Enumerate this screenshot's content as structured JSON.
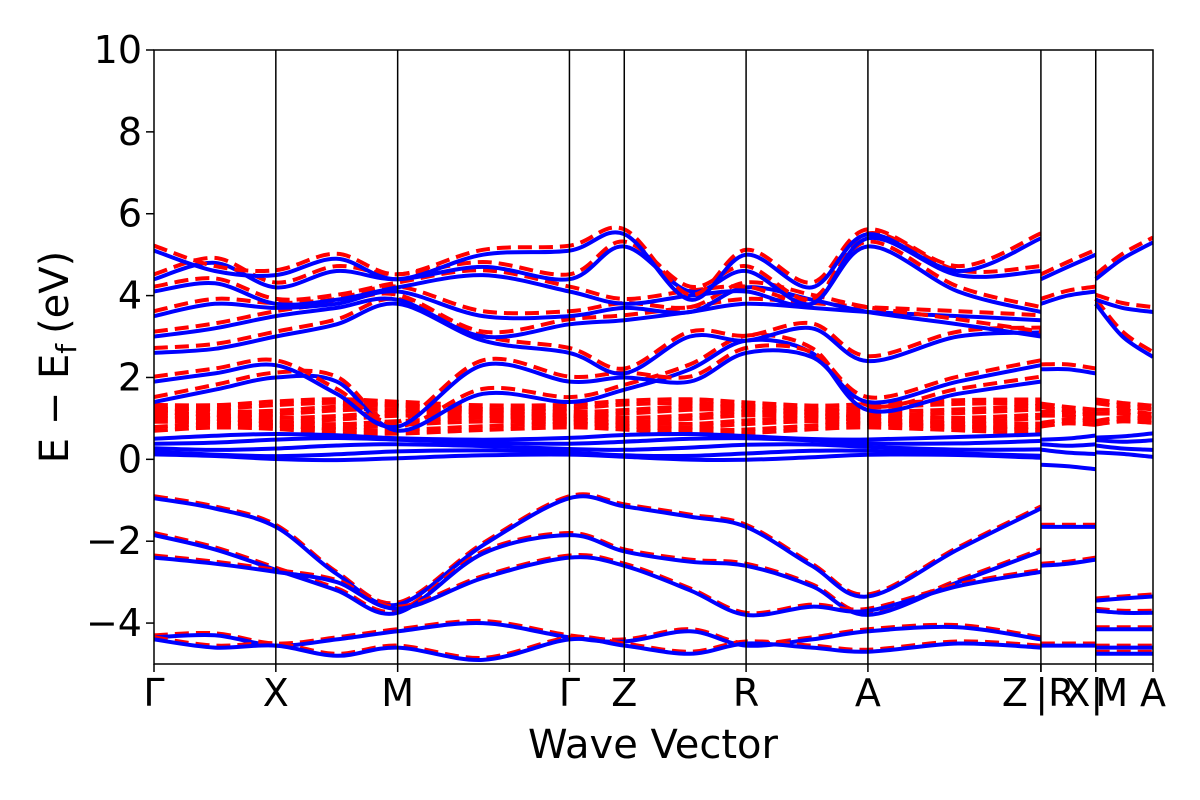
{
  "chart_data": {
    "type": "line",
    "xlabel": "Wave Vector",
    "ylabel": "E − E",
    "ylabel_subscript": "f",
    "ylabel_unit": "(eV)",
    "ylim": [
      -5,
      10
    ],
    "yticks": [
      {
        "value": -4,
        "label": "−4"
      },
      {
        "value": -2,
        "label": "−2"
      },
      {
        "value": 0,
        "label": "0"
      },
      {
        "value": 2,
        "label": "2"
      },
      {
        "value": 4,
        "label": "4"
      },
      {
        "value": 6,
        "label": "6"
      },
      {
        "value": 8,
        "label": "8"
      },
      {
        "value": 10,
        "label": "10"
      }
    ],
    "xlim": [
      0,
      8.2
    ],
    "kpoints": [
      {
        "label": "Γ",
        "x": 0.0
      },
      {
        "label": "X",
        "x": 1.0
      },
      {
        "label": "M",
        "x": 2.0
      },
      {
        "label": "Γ",
        "x": 3.41
      },
      {
        "label": "Z",
        "x": 3.86
      },
      {
        "label": "R",
        "x": 4.86
      },
      {
        "label": "A",
        "x": 5.86
      },
      {
        "label": "Z",
        "x": 7.28
      },
      {
        "label": "|R",
        "x": 7.28
      },
      {
        "label": "X|",
        "x": 7.73
      },
      {
        "label": "M",
        "x": 7.73
      },
      {
        "label": "A",
        "x": 8.2
      }
    ],
    "segment_breaks": [
      7.28,
      7.73
    ],
    "series_styles": [
      {
        "key": "dashed",
        "color": "#ff0000",
        "style": "dashed"
      },
      {
        "key": "solid",
        "color": "#0000ff",
        "style": "solid"
      }
    ],
    "bands": {
      "segments": [
        {
          "xs": [
            0,
            0.5,
            1.0,
            1.5,
            2.0,
            2.7,
            3.41,
            3.86,
            4.4,
            4.86,
            5.4,
            5.86,
            6.6,
            7.28
          ],
          "valence": [
            [
              -0.95,
              -1.2,
              -1.65,
              -2.8,
              -3.55,
              -2.1,
              -0.95,
              -1.15,
              -1.4,
              -1.65,
              -2.6,
              -3.35,
              -2.2,
              -1.2
            ],
            [
              -1.85,
              -2.2,
              -2.7,
              -3.2,
              -3.75,
              -2.3,
              -1.85,
              -2.25,
              -2.5,
              -2.6,
              -3.1,
              -3.8,
              -3.0,
              -2.25
            ],
            [
              -2.4,
              -2.55,
              -2.75,
              -3.0,
              -3.65,
              -2.9,
              -2.4,
              -2.6,
              -3.2,
              -3.8,
              -3.6,
              -3.7,
              -3.1,
              -2.75
            ],
            [
              -4.35,
              -4.3,
              -4.55,
              -4.4,
              -4.2,
              -4.0,
              -4.35,
              -4.45,
              -4.2,
              -4.55,
              -4.4,
              -4.2,
              -4.1,
              -4.4
            ],
            [
              -4.4,
              -4.6,
              -4.55,
              -4.8,
              -4.6,
              -4.9,
              -4.4,
              -4.55,
              -4.75,
              -4.5,
              -4.6,
              -4.7,
              -4.5,
              -4.6
            ]
          ],
          "flat": [
            0.05,
            0.15,
            0.3,
            0.45,
            0.55
          ],
          "flat_dashed": [
            0.7,
            0.85,
            1.0,
            1.15,
            1.3
          ],
          "conduction": [
            [
              1.4,
              1.7,
              2.0,
              1.9,
              0.7,
              1.6,
              1.4,
              1.7,
              2.2,
              2.9,
              2.6,
              1.2,
              1.6,
              1.9
            ],
            [
              1.9,
              2.1,
              2.3,
              1.6,
              0.8,
              2.3,
              1.9,
              2.0,
              1.9,
              2.6,
              2.5,
              1.4,
              1.9,
              2.3
            ],
            [
              2.6,
              2.7,
              3.0,
              3.3,
              3.8,
              2.9,
              2.6,
              2.1,
              3.0,
              2.9,
              3.2,
              2.4,
              3.0,
              3.1
            ],
            [
              3.0,
              3.2,
              3.5,
              3.7,
              3.9,
              3.0,
              3.3,
              3.4,
              3.6,
              3.8,
              3.7,
              3.6,
              3.5,
              3.4
            ],
            [
              3.5,
              3.8,
              3.7,
              3.8,
              4.1,
              3.5,
              3.5,
              3.7,
              3.6,
              4.2,
              3.9,
              3.6,
              3.3,
              3.0
            ],
            [
              4.1,
              4.3,
              3.8,
              3.9,
              4.2,
              4.5,
              4.1,
              3.8,
              4.0,
              4.1,
              3.8,
              5.2,
              4.1,
              3.6
            ],
            [
              4.4,
              4.8,
              4.2,
              4.6,
              4.4,
              4.7,
              4.4,
              5.2,
              4.1,
              4.6,
              3.8,
              5.4,
              4.5,
              4.6
            ],
            [
              5.1,
              4.6,
              4.5,
              4.9,
              4.4,
              5.0,
              5.1,
              5.5,
              3.9,
              5.0,
              4.2,
              5.5,
              4.6,
              5.4
            ]
          ]
        },
        {
          "xs": [
            7.28,
            7.5,
            7.73
          ],
          "valence": [
            [
              -1.65,
              -1.65,
              -1.65
            ],
            [
              -2.6,
              -2.55,
              -2.45
            ],
            [
              -4.55,
              -4.55,
              -4.55
            ]
          ],
          "flat": [
            -0.2,
            0.2,
            0.4,
            0.55
          ],
          "flat_dashed": [
            0.8,
            1.0,
            1.2
          ],
          "conduction": [
            [
              2.2,
              2.2,
              2.1
            ],
            [
              3.8,
              4.0,
              4.1
            ],
            [
              4.4,
              4.7,
              5.0
            ]
          ]
        },
        {
          "xs": [
            7.73,
            7.95,
            8.2
          ],
          "valence": [
            [
              -3.45,
              -3.4,
              -3.35
            ],
            [
              -3.7,
              -3.75,
              -3.75
            ],
            [
              -4.15,
              -4.15,
              -4.15
            ],
            [
              -4.6,
              -4.6,
              -4.6
            ],
            [
              -4.75,
              -4.75,
              -4.75
            ]
          ],
          "flat": [
            0.1,
            0.3,
            0.5,
            0.6
          ],
          "flat_dashed": [
            0.85,
            1.05,
            1.3
          ],
          "conduction": [
            [
              3.8,
              3.0,
              2.5
            ],
            [
              3.9,
              3.7,
              3.6
            ],
            [
              4.4,
              4.9,
              5.3
            ]
          ]
        }
      ]
    }
  }
}
